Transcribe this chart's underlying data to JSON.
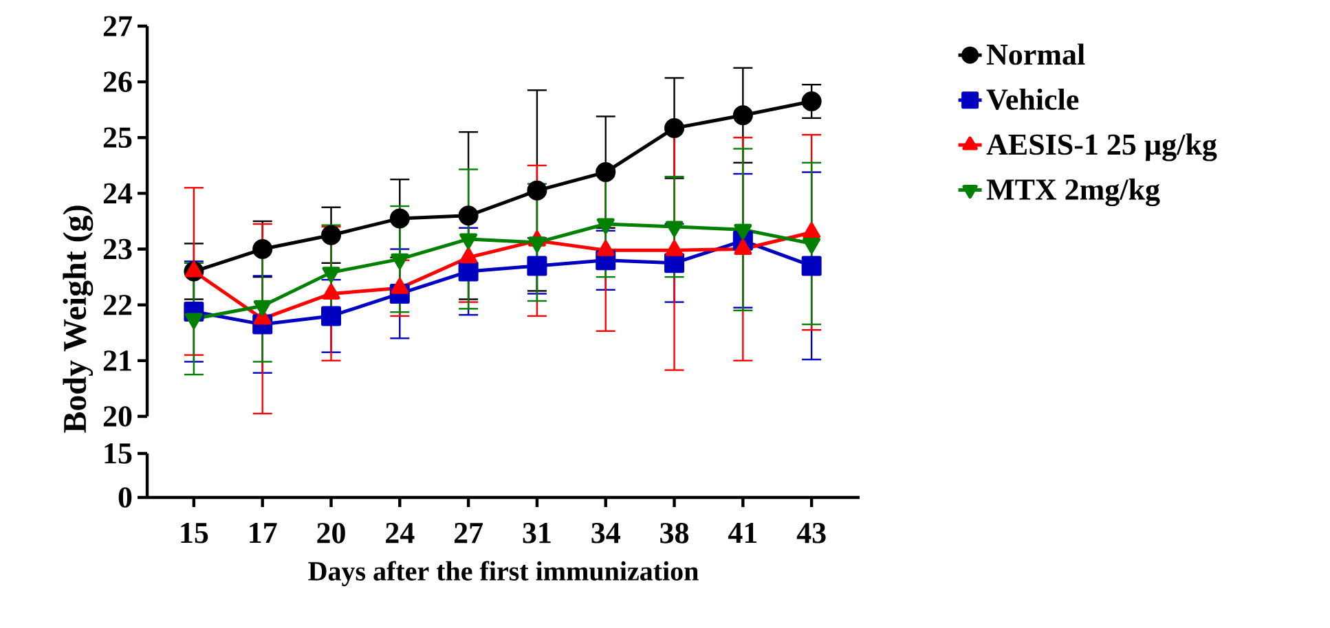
{
  "chart_data": [
    {
      "type": "line",
      "categories": [
        "15",
        "17",
        "20",
        "24",
        "27",
        "31",
        "34",
        "38",
        "41",
        "43"
      ],
      "ylabel": "Body Weight (g)",
      "ylim": [
        20,
        27
      ],
      "yticks": [
        20,
        21,
        22,
        23,
        24,
        25,
        26,
        27
      ],
      "tick_labels": "y",
      "legend": "right",
      "series": [
        {
          "name": "Normal",
          "color": "#000000",
          "marker": "circle",
          "values": [
            22.6,
            23.0,
            23.25,
            23.55,
            23.6,
            24.05,
            24.38,
            25.17,
            25.4,
            25.65
          ],
          "errors": [
            0.5,
            0.5,
            0.5,
            0.7,
            1.5,
            1.8,
            1.0,
            0.9,
            0.85,
            0.3
          ]
        },
        {
          "name": "Vehicle",
          "color": "#0000c0",
          "marker": "square",
          "values": [
            21.88,
            21.65,
            21.8,
            22.2,
            22.6,
            22.7,
            22.8,
            22.75,
            23.15,
            22.7
          ],
          "errors": [
            0.9,
            0.87,
            0.65,
            0.8,
            0.78,
            0.5,
            0.53,
            0.7,
            1.2,
            1.68
          ]
        },
        {
          "name": "AESIS-1 25 µg/kg",
          "color": "#ff0000",
          "marker": "triangle",
          "values": [
            22.6,
            21.75,
            22.2,
            22.3,
            22.85,
            23.15,
            22.98,
            22.98,
            23.0,
            23.3
          ],
          "errors": [
            1.5,
            1.7,
            1.2,
            0.5,
            0.8,
            1.35,
            1.45,
            2.15,
            2.0,
            1.75
          ]
        },
        {
          "name": "MTX 2mg/kg",
          "color": "#008000",
          "marker": "triangle-down",
          "values": [
            21.75,
            21.98,
            22.58,
            22.82,
            23.18,
            23.12,
            23.45,
            23.4,
            23.35,
            23.1
          ],
          "errors": [
            1.0,
            1.0,
            0.85,
            0.95,
            1.25,
            1.05,
            0.95,
            0.9,
            1.45,
            1.45
          ]
        }
      ]
    },
    {
      "type": "line",
      "categories": [
        "15",
        "17",
        "20",
        "24",
        "27",
        "31",
        "34",
        "38",
        "41",
        "43"
      ],
      "xlabel": "Days after the first immunization",
      "ylim": [
        0,
        15
      ],
      "yticks": [
        0,
        15
      ]
    }
  ]
}
